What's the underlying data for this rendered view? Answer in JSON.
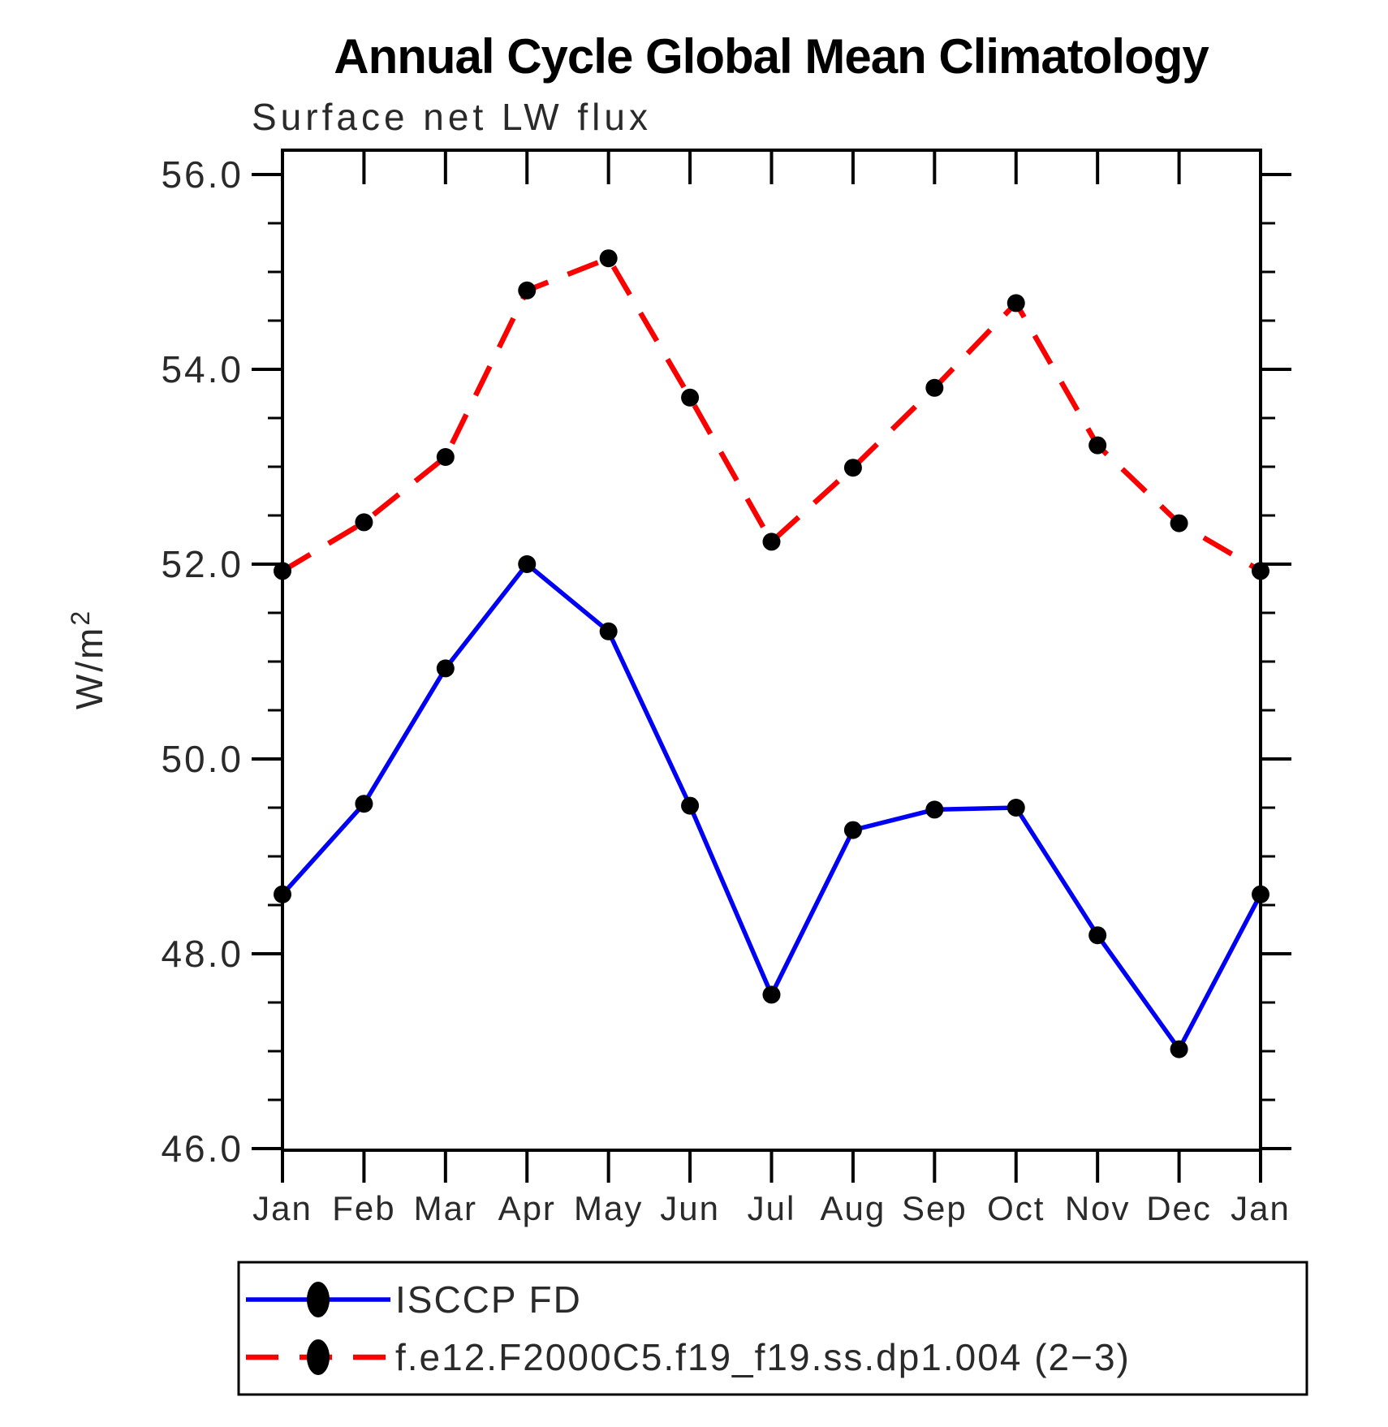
{
  "title": "Annual Cycle Global Mean Climatology",
  "subtitle": "Surface net LW flux",
  "labels": {
    "ylabel_base": "W/m",
    "ylabel_exp": "2"
  },
  "chart_data": {
    "type": "line",
    "title": "Annual Cycle Global Mean Climatology",
    "subtitle": "Surface net LW flux",
    "ylabel": "W/m^2",
    "xlabel": "",
    "x_categories": [
      "Jan",
      "Feb",
      "Mar",
      "Apr",
      "May",
      "Jun",
      "Jul",
      "Aug",
      "Sep",
      "Oct",
      "Nov",
      "Dec",
      "Jan"
    ],
    "ylim": [
      46.0,
      56.25
    ],
    "yticks": [
      56.0,
      54.0,
      52.0,
      50.0,
      48.0,
      46.0
    ],
    "ytick_labels": [
      "56.0",
      "54.0",
      "52.0",
      "50.0",
      "48.0",
      "46.0"
    ],
    "minor_tick_step": 0.5,
    "grid": false,
    "legend_position": "bottom",
    "series": [
      {
        "name": "ISCCP FD",
        "line_style": "solid",
        "line_color": "#0000f5",
        "marker": "filled-circle",
        "marker_color": "#000000",
        "values": [
          48.61,
          49.54,
          50.93,
          52.0,
          51.31,
          49.52,
          47.58,
          49.27,
          49.48,
          49.5,
          48.19,
          47.02,
          48.61
        ]
      },
      {
        "name": "f.e12.F2000C5.f19_f19.ss.dp1.004 (2−3)",
        "line_style": "dashed",
        "line_color": "#fa0000",
        "marker": "filled-circle",
        "marker_color": "#000000",
        "values": [
          51.93,
          52.43,
          53.1,
          54.81,
          55.14,
          53.71,
          52.23,
          52.99,
          53.81,
          54.68,
          53.22,
          52.42,
          51.93
        ]
      }
    ]
  }
}
